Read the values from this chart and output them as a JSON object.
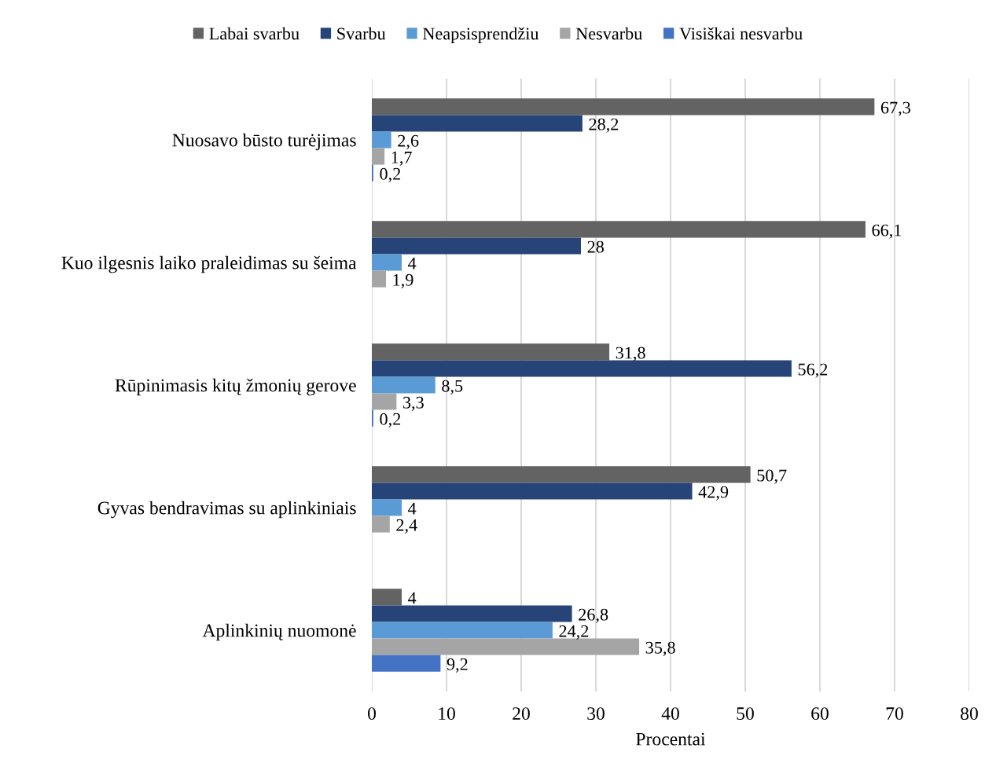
{
  "chart_data": {
    "type": "bar",
    "orientation": "horizontal",
    "xlabel": "Procentai",
    "categories": [
      "Nuosavo būsto turėjimas",
      "Kuo ilgesnis laiko praleidimas su šeima",
      "Rūpinimasis kitų žmonių gerove",
      "Gyvas bendravimas su aplinkiniais",
      "Aplinkinių nuomonė"
    ],
    "series": [
      {
        "name": "Labai svarbu",
        "color": "#636363",
        "values": [
          67.3,
          66.1,
          31.8,
          50.7,
          4
        ],
        "value_labels": [
          "67,3",
          "66,1",
          "31,8",
          "50,7",
          "4"
        ]
      },
      {
        "name": "Svarbu",
        "color": "#264478",
        "values": [
          28.2,
          28,
          56.2,
          42.9,
          26.8
        ],
        "value_labels": [
          "28,2",
          "28",
          "56,2",
          "42,9",
          "26,8"
        ]
      },
      {
        "name": "Neapsisprendžiu",
        "color": "#5b9bd5",
        "values": [
          2.6,
          4,
          8.5,
          4,
          24.2
        ],
        "value_labels": [
          "2,6",
          "4",
          "8,5",
          "4",
          "24,2"
        ]
      },
      {
        "name": "Nesvarbu",
        "color": "#a5a5a5",
        "values": [
          1.7,
          1.9,
          3.3,
          2.4,
          35.8
        ],
        "value_labels": [
          "1,7",
          "1,9",
          "3,3",
          "2,4",
          "35,8"
        ]
      },
      {
        "name": "Visiškai nesvarbu",
        "color": "#4472c4",
        "values": [
          0.2,
          null,
          0.2,
          null,
          9.2
        ],
        "value_labels": [
          "0,2",
          null,
          "0,2",
          null,
          "9,2"
        ]
      }
    ],
    "xlim": [
      0,
      80
    ],
    "xticks": [
      0,
      10,
      20,
      30,
      40,
      50,
      60,
      70,
      80
    ],
    "grid": "x",
    "legend": "top"
  }
}
